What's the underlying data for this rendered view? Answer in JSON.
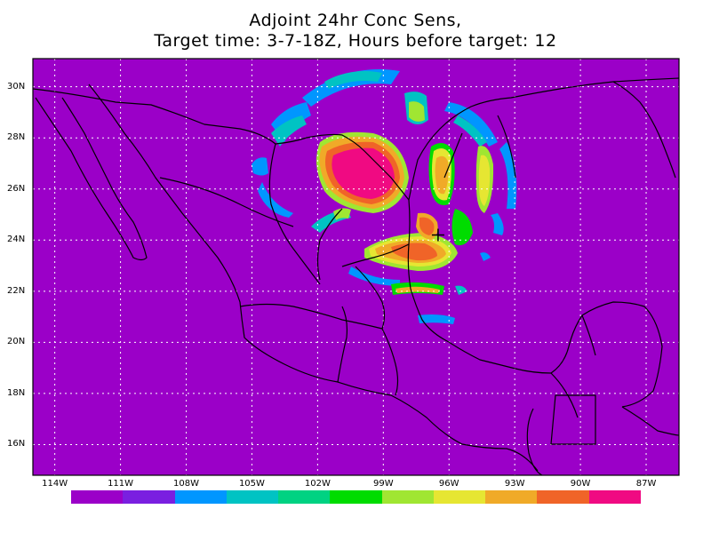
{
  "title": {
    "line1": "Adjoint 24hr Conc Sens,",
    "line2": "Target time: 3-7-18Z, Hours before target: 12"
  },
  "axes": {
    "lat_labels": [
      "30N",
      "28N",
      "26N",
      "24N",
      "22N",
      "20N",
      "18N",
      "16N"
    ],
    "lon_labels": [
      "114W",
      "111W",
      "108W",
      "105W",
      "102W",
      "99W",
      "96W",
      "93W",
      "90W",
      "87W"
    ]
  },
  "colors": {
    "background_field": "#9b00c8",
    "coastline": "#000000",
    "grid": "#ffffff",
    "target_marker": "#000000"
  },
  "colorbar": [
    "#9b00c8",
    "#7a1fe0",
    "#0096ff",
    "#00c3c3",
    "#00d282",
    "#00dc00",
    "#a0e632",
    "#e6e632",
    "#f0aa28",
    "#f06428",
    "#f00a82"
  ],
  "target_marker": {
    "lon": -96.5,
    "lat": 24.2,
    "symbol": "+"
  }
}
